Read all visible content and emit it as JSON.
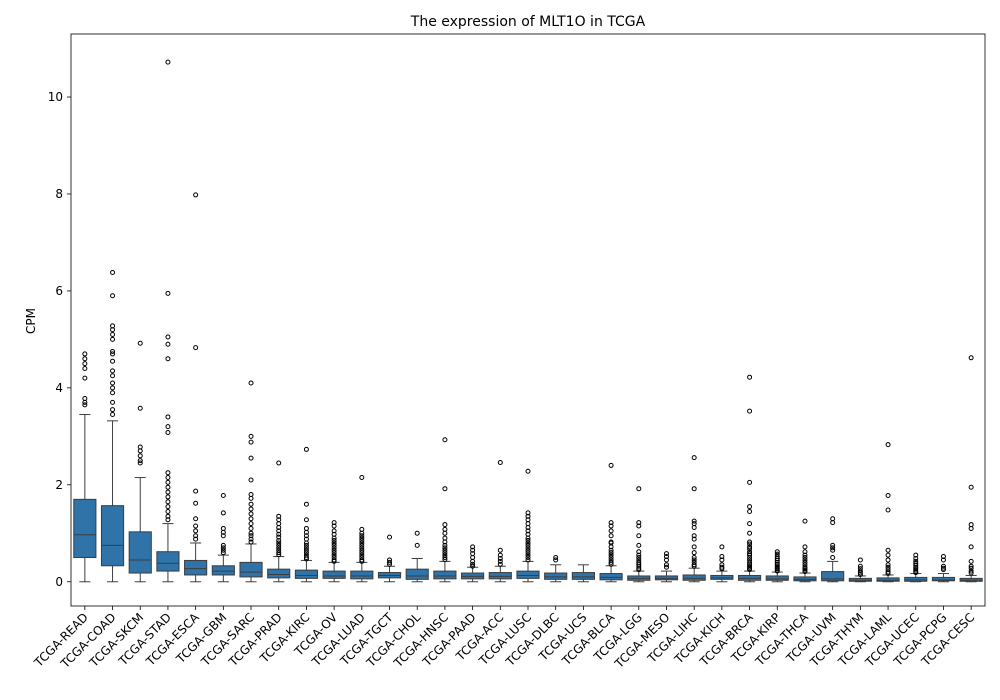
{
  "chart_data": {
    "type": "box",
    "title": "The expression of MLT1O in TCGA",
    "xlabel": "",
    "ylabel": "CPM",
    "ylim": [
      -0.5,
      11.3
    ],
    "yticks": [
      0,
      2,
      4,
      6,
      8,
      10
    ],
    "box_color": "#2f73a8",
    "categories": [
      "TCGA-READ",
      "TCGA-COAD",
      "TCGA-SKCM",
      "TCGA-STAD",
      "TCGA-ESCA",
      "TCGA-GBM",
      "TCGA-SARC",
      "TCGA-PRAD",
      "TCGA-KIRC",
      "TCGA-OV",
      "TCGA-LUAD",
      "TCGA-TGCT",
      "TCGA-CHOL",
      "TCGA-HNSC",
      "TCGA-PAAD",
      "TCGA-ACC",
      "TCGA-LUSC",
      "TCGA-DLBC",
      "TCGA-UCS",
      "TCGA-BLCA",
      "TCGA-LGG",
      "TCGA-MESO",
      "TCGA-LIHC",
      "TCGA-KICH",
      "TCGA-BRCA",
      "TCGA-KIRP",
      "TCGA-THCA",
      "TCGA-UVM",
      "TCGA-THYM",
      "TCGA-LAML",
      "TCGA-UCEC",
      "TCGA-PCPG",
      "TCGA-CESC"
    ],
    "boxes": [
      {
        "whislo": 0,
        "q1": 0.5,
        "med": 0.97,
        "q3": 1.7,
        "whishi": 3.45,
        "fliers": [
          4.7,
          4.6,
          4.5,
          4.4,
          4.2,
          3.78,
          3.7,
          3.65
        ]
      },
      {
        "whislo": 0,
        "q1": 0.33,
        "med": 0.75,
        "q3": 1.57,
        "whishi": 3.32,
        "fliers": [
          6.38,
          5.9,
          5.28,
          5.2,
          5.1,
          5.0,
          4.75,
          4.7,
          4.55,
          4.35,
          4.25,
          4.1,
          4.0,
          3.9,
          3.7,
          3.55,
          3.45
        ]
      },
      {
        "whislo": 0,
        "q1": 0.18,
        "med": 0.45,
        "q3": 1.03,
        "whishi": 2.15,
        "fliers": [
          4.92,
          3.58,
          2.78,
          2.7,
          2.6,
          2.5,
          2.45
        ]
      },
      {
        "whislo": 0,
        "q1": 0.22,
        "med": 0.38,
        "q3": 0.62,
        "whishi": 1.2,
        "fliers": [
          10.72,
          5.95,
          5.05,
          4.9,
          4.6,
          3.4,
          3.2,
          3.08,
          2.25,
          2.15,
          2.05,
          1.95,
          1.85,
          1.75,
          1.65,
          1.55,
          1.45,
          1.35,
          1.28
        ]
      },
      {
        "whislo": 0,
        "q1": 0.14,
        "med": 0.27,
        "q3": 0.44,
        "whishi": 0.8,
        "fliers": [
          7.98,
          4.83,
          1.87,
          1.62,
          1.3,
          1.15,
          1.05,
          0.95,
          0.88
        ]
      },
      {
        "whislo": 0,
        "q1": 0.14,
        "med": 0.22,
        "q3": 0.33,
        "whishi": 0.55,
        "fliers": [
          1.78,
          1.42,
          1.1,
          1.02,
          0.95,
          0.75,
          0.7,
          0.65,
          0.6
        ]
      },
      {
        "whislo": 0,
        "q1": 0.1,
        "med": 0.2,
        "q3": 0.4,
        "whishi": 0.78,
        "fliers": [
          4.1,
          3.0,
          2.88,
          2.55,
          2.1,
          1.8,
          1.72,
          1.6,
          1.5,
          1.4,
          1.3,
          1.2,
          1.1,
          1.0,
          0.95,
          0.88,
          0.82
        ]
      },
      {
        "whislo": 0,
        "q1": 0.08,
        "med": 0.15,
        "q3": 0.26,
        "whishi": 0.52,
        "fliers": [
          2.45,
          1.35,
          1.28,
          1.2,
          1.12,
          1.05,
          0.98,
          0.92,
          0.85,
          0.8,
          0.75,
          0.7,
          0.65,
          0.6,
          0.56
        ]
      },
      {
        "whislo": 0,
        "q1": 0.07,
        "med": 0.13,
        "q3": 0.24,
        "whishi": 0.44,
        "fliers": [
          2.73,
          1.6,
          1.28,
          1.1,
          1.02,
          0.95,
          0.88,
          0.8,
          0.75,
          0.7,
          0.65,
          0.6,
          0.55,
          0.5,
          0.47
        ]
      },
      {
        "whislo": 0,
        "q1": 0.07,
        "med": 0.12,
        "q3": 0.22,
        "whishi": 0.4,
        "fliers": [
          1.22,
          1.15,
          1.05,
          0.98,
          0.9,
          0.85,
          0.8,
          0.75,
          0.7,
          0.65,
          0.6,
          0.55,
          0.5,
          0.45,
          0.42
        ]
      },
      {
        "whislo": 0,
        "q1": 0.06,
        "med": 0.12,
        "q3": 0.22,
        "whishi": 0.4,
        "fliers": [
          2.15,
          1.08,
          1.0,
          0.95,
          0.9,
          0.85,
          0.8,
          0.75,
          0.7,
          0.65,
          0.6,
          0.55,
          0.5,
          0.45,
          0.42
        ]
      },
      {
        "whislo": 0,
        "q1": 0.08,
        "med": 0.13,
        "q3": 0.19,
        "whishi": 0.32,
        "fliers": [
          0.92,
          0.45,
          0.4,
          0.36
        ]
      },
      {
        "whislo": 0,
        "q1": 0.05,
        "med": 0.12,
        "q3": 0.26,
        "whishi": 0.48,
        "fliers": [
          1.0,
          0.75
        ]
      },
      {
        "whislo": 0,
        "q1": 0.06,
        "med": 0.12,
        "q3": 0.22,
        "whishi": 0.42,
        "fliers": [
          2.93,
          1.92,
          1.18,
          1.08,
          1.0,
          0.9,
          0.82,
          0.75,
          0.7,
          0.65,
          0.6,
          0.55,
          0.5,
          0.46
        ]
      },
      {
        "whislo": 0,
        "q1": 0.06,
        "med": 0.11,
        "q3": 0.18,
        "whishi": 0.3,
        "fliers": [
          0.72,
          0.65,
          0.58,
          0.5,
          0.42,
          0.36,
          0.32
        ]
      },
      {
        "whislo": 0,
        "q1": 0.06,
        "med": 0.11,
        "q3": 0.19,
        "whishi": 0.32,
        "fliers": [
          2.46,
          0.65,
          0.55,
          0.48,
          0.42,
          0.36
        ]
      },
      {
        "whislo": 0,
        "q1": 0.07,
        "med": 0.13,
        "q3": 0.22,
        "whishi": 0.42,
        "fliers": [
          2.28,
          1.42,
          1.35,
          1.28,
          1.2,
          1.12,
          1.05,
          0.98,
          0.9,
          0.85,
          0.8,
          0.75,
          0.7,
          0.65,
          0.6,
          0.55,
          0.5,
          0.45
        ]
      },
      {
        "whislo": 0,
        "q1": 0.05,
        "med": 0.1,
        "q3": 0.18,
        "whishi": 0.35,
        "fliers": [
          0.5,
          0.45
        ]
      },
      {
        "whislo": 0,
        "q1": 0.05,
        "med": 0.1,
        "q3": 0.19,
        "whishi": 0.35,
        "fliers": []
      },
      {
        "whislo": 0,
        "q1": 0.04,
        "med": 0.09,
        "q3": 0.17,
        "whishi": 0.33,
        "fliers": [
          2.4,
          1.22,
          1.15,
          1.05,
          0.95,
          0.82,
          0.8,
          0.72,
          0.65,
          0.6,
          0.55,
          0.5,
          0.45,
          0.4,
          0.36
        ]
      },
      {
        "whislo": 0,
        "q1": 0.03,
        "med": 0.07,
        "q3": 0.12,
        "whishi": 0.22,
        "fliers": [
          1.92,
          1.22,
          1.15,
          0.95,
          0.75,
          0.62,
          0.55,
          0.5,
          0.45,
          0.4,
          0.36,
          0.32,
          0.28,
          0.25
        ]
      },
      {
        "whislo": 0,
        "q1": 0.04,
        "med": 0.07,
        "q3": 0.12,
        "whishi": 0.22,
        "fliers": [
          0.58,
          0.52,
          0.45,
          0.35,
          0.3
        ]
      },
      {
        "whislo": 0,
        "q1": 0.03,
        "med": 0.07,
        "q3": 0.14,
        "whishi": 0.28,
        "fliers": [
          2.56,
          1.92,
          1.25,
          1.2,
          1.12,
          0.95,
          0.88,
          0.72,
          0.6,
          0.5,
          0.45,
          0.4,
          0.35,
          0.32
        ]
      },
      {
        "whislo": 0,
        "q1": 0.05,
        "med": 0.08,
        "q3": 0.13,
        "whishi": 0.22,
        "fliers": [
          0.72,
          0.52,
          0.45,
          0.35,
          0.3,
          0.27
        ]
      },
      {
        "whislo": 0,
        "q1": 0.03,
        "med": 0.07,
        "q3": 0.13,
        "whishi": 0.22,
        "fliers": [
          4.22,
          3.52,
          2.05,
          1.55,
          1.45,
          1.2,
          1.0,
          0.82,
          0.78,
          0.72,
          0.68,
          0.62,
          0.58,
          0.55,
          0.5,
          0.45,
          0.4,
          0.36,
          0.33,
          0.3,
          0.27,
          0.25
        ]
      },
      {
        "whislo": 0,
        "q1": 0.03,
        "med": 0.06,
        "q3": 0.12,
        "whishi": 0.2,
        "fliers": [
          0.62,
          0.57,
          0.52,
          0.48,
          0.44,
          0.4,
          0.36,
          0.33,
          0.3,
          0.27,
          0.24,
          0.22
        ]
      },
      {
        "whislo": 0,
        "q1": 0.02,
        "med": 0.05,
        "q3": 0.1,
        "whishi": 0.18,
        "fliers": [
          1.25,
          0.72,
          0.62,
          0.55,
          0.5,
          0.45,
          0.4,
          0.35,
          0.3,
          0.27,
          0.24,
          0.21
        ]
      },
      {
        "whislo": 0,
        "q1": 0.02,
        "med": 0.06,
        "q3": 0.21,
        "whishi": 0.42,
        "fliers": [
          1.3,
          1.22,
          0.75,
          0.7,
          0.65,
          0.5
        ]
      },
      {
        "whislo": 0,
        "q1": 0.01,
        "med": 0.03,
        "q3": 0.07,
        "whishi": 0.12,
        "fliers": [
          0.45,
          0.32,
          0.27,
          0.22,
          0.18,
          0.15
        ]
      },
      {
        "whislo": 0,
        "q1": 0.01,
        "med": 0.03,
        "q3": 0.08,
        "whishi": 0.14,
        "fliers": [
          2.83,
          1.78,
          1.48,
          0.65,
          0.55,
          0.45,
          0.35,
          0.3,
          0.25,
          0.2,
          0.17
        ]
      },
      {
        "whislo": 0,
        "q1": 0.01,
        "med": 0.04,
        "q3": 0.09,
        "whishi": 0.17,
        "fliers": [
          0.55,
          0.48,
          0.42,
          0.38,
          0.34,
          0.3,
          0.27,
          0.24,
          0.21,
          0.19
        ]
      },
      {
        "whislo": 0,
        "q1": 0.02,
        "med": 0.04,
        "q3": 0.09,
        "whishi": 0.17,
        "fliers": [
          0.52,
          0.45,
          0.32,
          0.28,
          0.25
        ]
      },
      {
        "whislo": 0,
        "q1": 0.01,
        "med": 0.03,
        "q3": 0.07,
        "whishi": 0.13,
        "fliers": [
          4.62,
          1.95,
          1.18,
          1.1,
          0.72,
          0.42,
          0.32,
          0.28,
          0.22,
          0.18
        ]
      }
    ]
  }
}
